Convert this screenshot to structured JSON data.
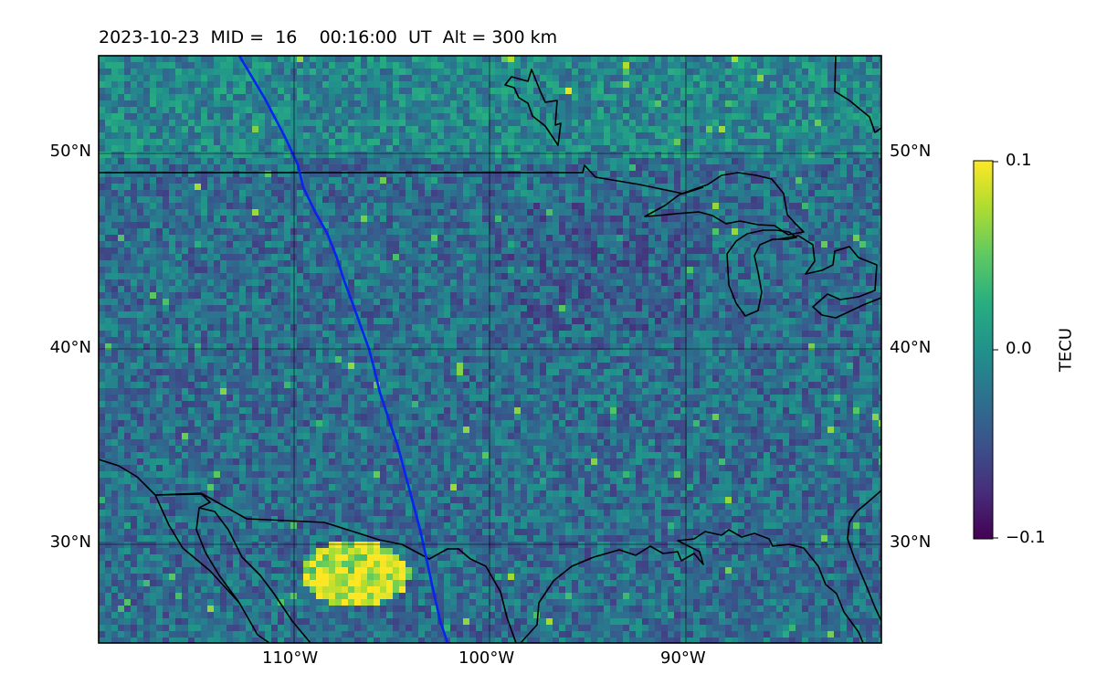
{
  "title": {
    "date": "2023-10-23",
    "mid_label": "MID =",
    "mid_value": "16",
    "time": "00:16:00",
    "time_unit": "UT",
    "alt_label": "Alt =",
    "alt_value": "300 km"
  },
  "map": {
    "lon_range": [
      -120,
      -80
    ],
    "lat_range": [
      25,
      55
    ],
    "lat_ticks": [
      "50°N",
      "40°N",
      "30°N"
    ],
    "lon_ticks": [
      "110°W",
      "100°W",
      "90°W"
    ],
    "grid": true,
    "track_color": "#0a24f0"
  },
  "colorbar": {
    "label": "TECU",
    "colormap": "viridis",
    "ticks": [
      "0.1",
      "0.0",
      "−0.1"
    ],
    "vmin": -0.1,
    "vmax": 0.1
  }
}
